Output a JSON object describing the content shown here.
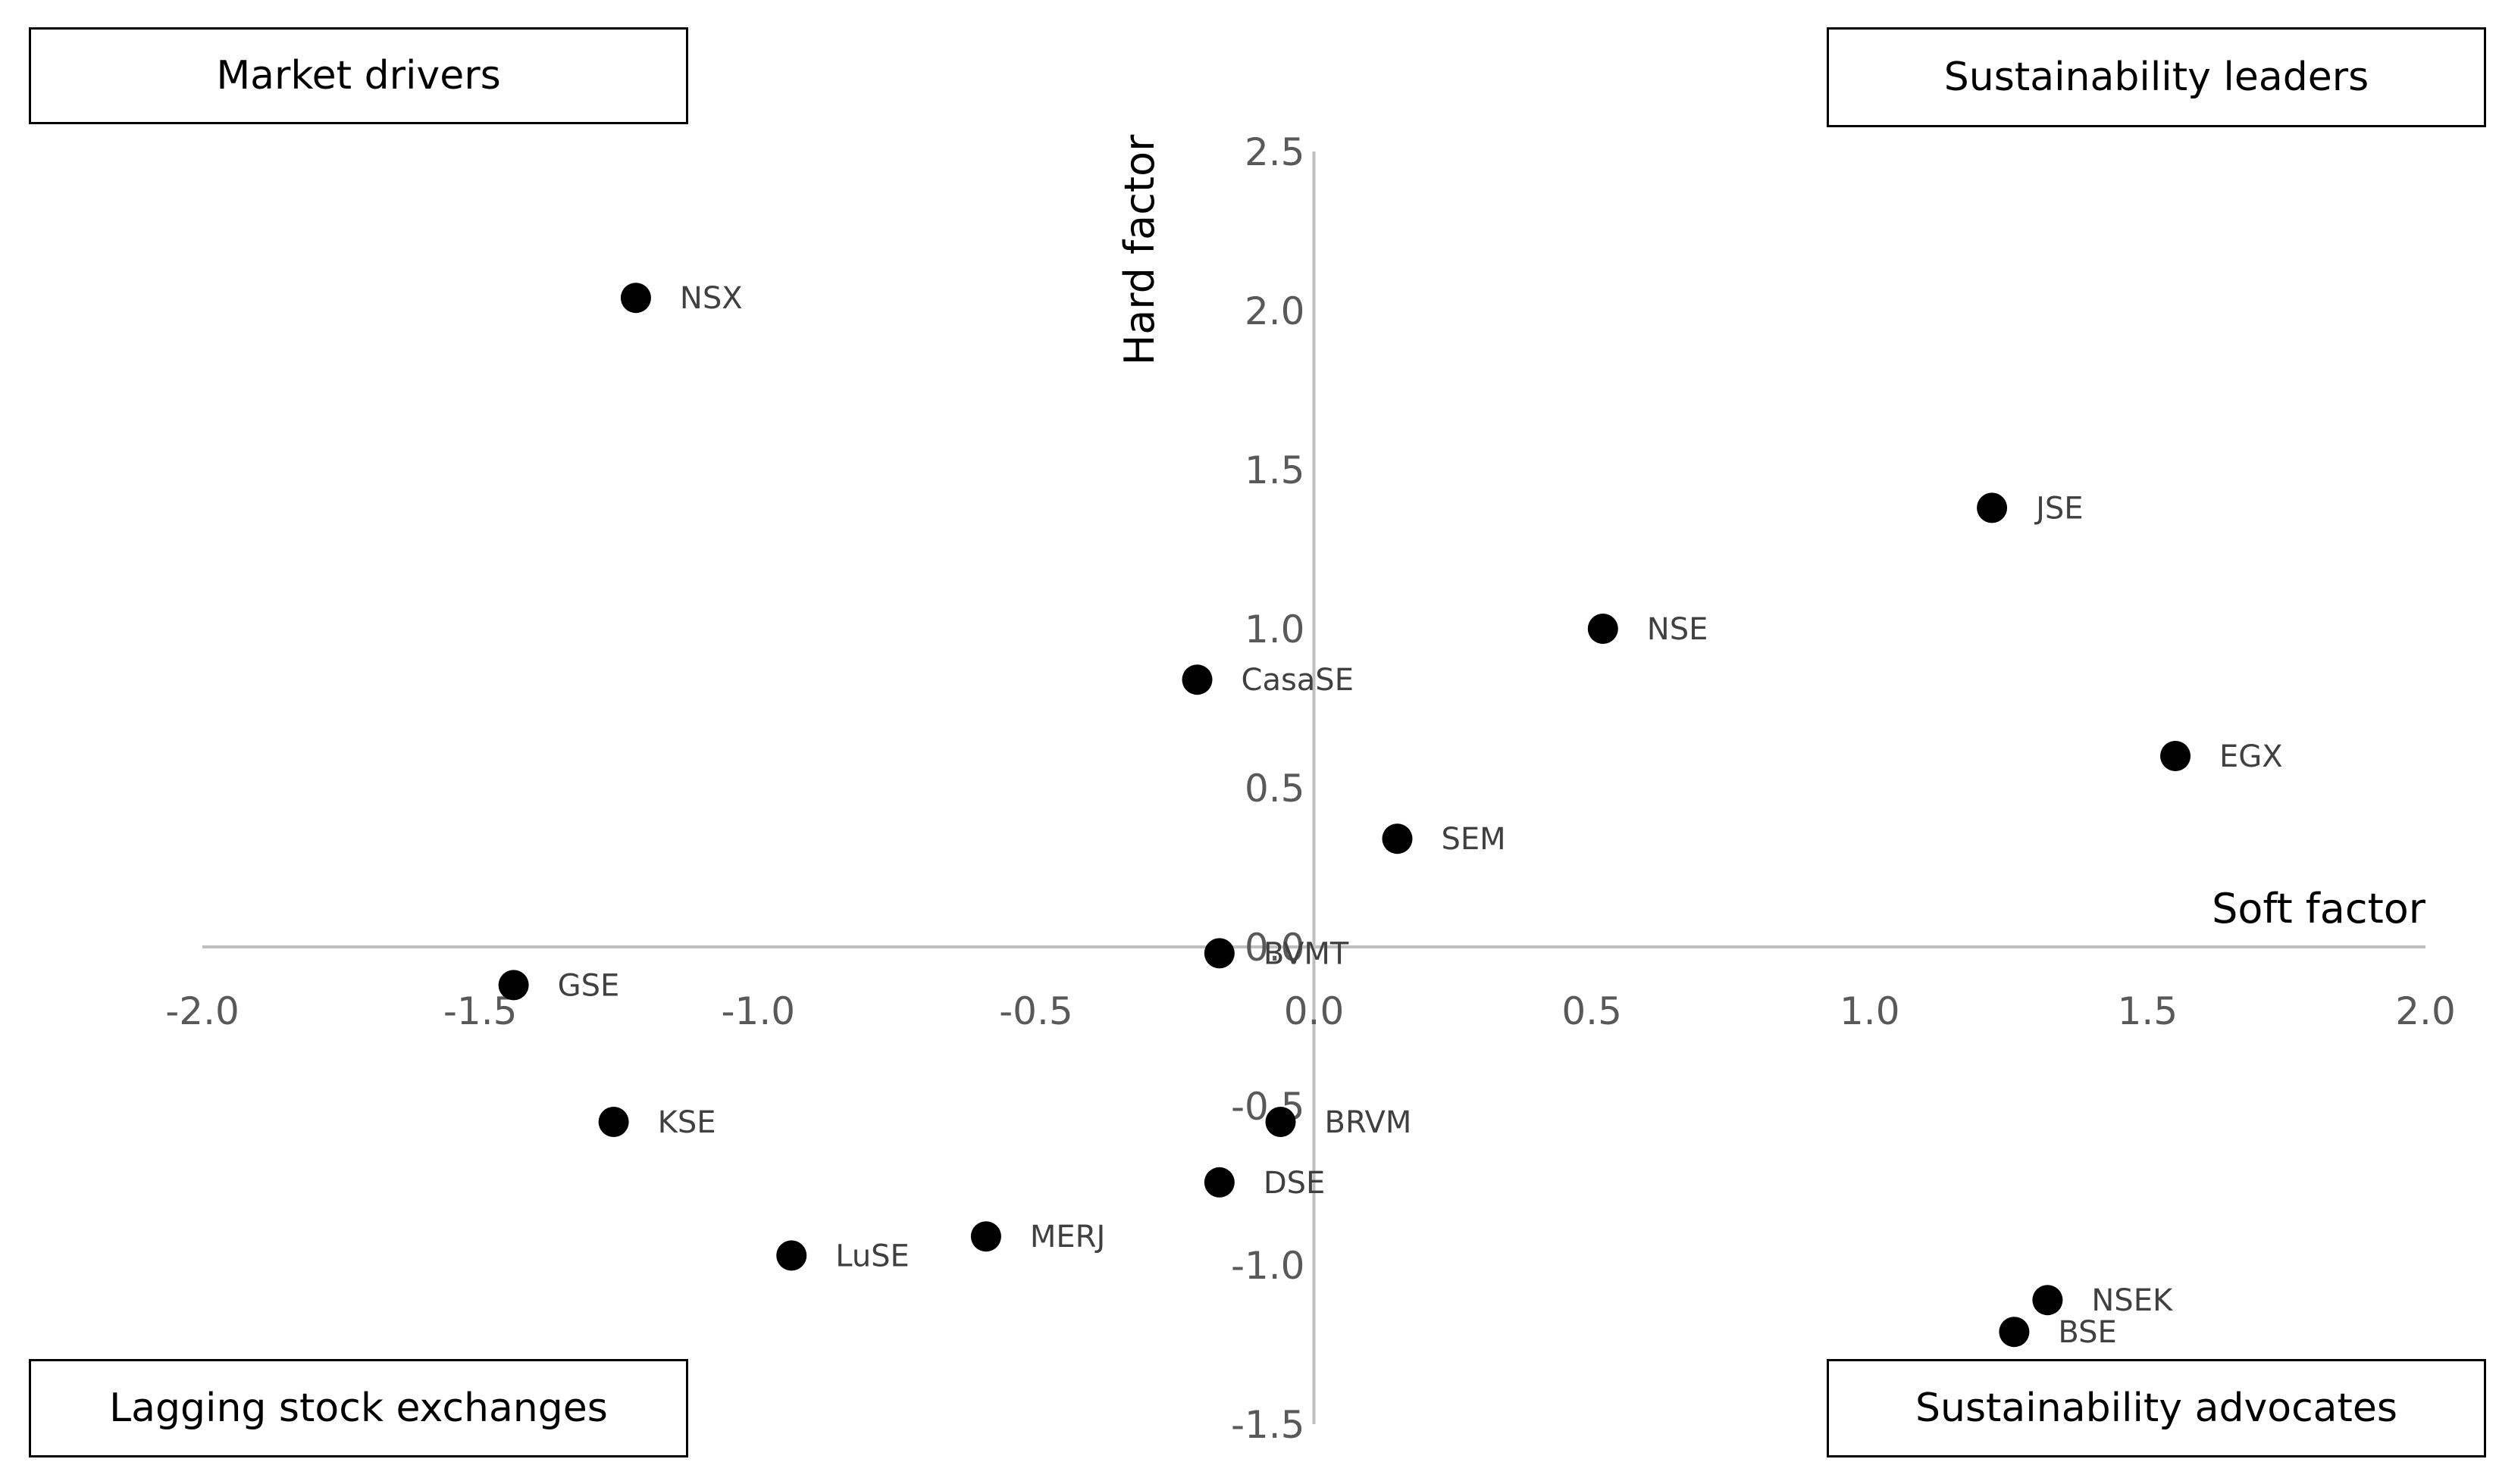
{
  "quadrants": {
    "top_left": "Market drivers",
    "top_right": "Sustainability leaders",
    "bottom_left": "Lagging stock exchanges",
    "bottom_right": "Sustainability advocates"
  },
  "chart_data": {
    "type": "scatter",
    "title": "",
    "xlabel": "Soft factor",
    "ylabel": "Hard factor",
    "xlim": [
      -2.0,
      2.0
    ],
    "ylim": [
      -1.5,
      2.5
    ],
    "xticks": [
      "-2.0",
      "-1.5",
      "-1.0",
      "-0.5",
      "0.0",
      "0.5",
      "1.0",
      "1.5",
      "2.0"
    ],
    "yticks": [
      "2.5",
      "2.0",
      "1.5",
      "1.0",
      "0.5",
      "0.0",
      "-0.5",
      "-1.0",
      "-1.5"
    ],
    "points": [
      {
        "label": "NSX",
        "x": -1.22,
        "y": 2.04
      },
      {
        "label": "JSE",
        "x": 1.22,
        "y": 1.38
      },
      {
        "label": "NSE",
        "x": 0.52,
        "y": 1.0
      },
      {
        "label": "CasaSE",
        "x": -0.21,
        "y": 0.84
      },
      {
        "label": "EGX",
        "x": 1.55,
        "y": 0.6
      },
      {
        "label": "SEM",
        "x": 0.15,
        "y": 0.34
      },
      {
        "label": "BVMT",
        "x": -0.17,
        "y": -0.02
      },
      {
        "label": "GSE",
        "x": -1.44,
        "y": -0.12
      },
      {
        "label": "KSE",
        "x": -1.26,
        "y": -0.55
      },
      {
        "label": "BRVM",
        "x": -0.06,
        "y": -0.55
      },
      {
        "label": "DSE",
        "x": -0.17,
        "y": -0.74
      },
      {
        "label": "MERJ",
        "x": -0.59,
        "y": -0.91
      },
      {
        "label": "LuSE",
        "x": -0.94,
        "y": -0.97
      },
      {
        "label": "NSEK",
        "x": 1.32,
        "y": -1.11
      },
      {
        "label": "BSE",
        "x": 1.26,
        "y": -1.21
      }
    ]
  }
}
